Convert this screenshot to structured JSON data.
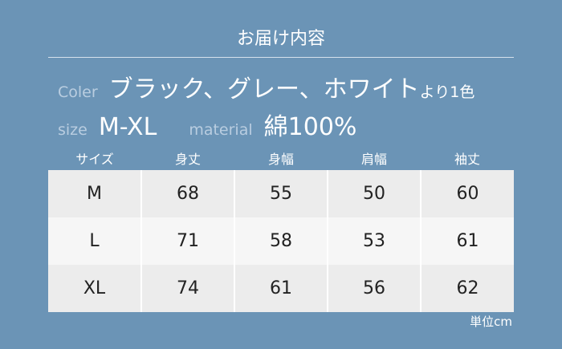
{
  "title": "お届け内容",
  "color": {
    "label": "Coler",
    "value": "ブラック、グレー、ホワイト",
    "suffix": "より1色"
  },
  "size": {
    "label": "size",
    "value": "M-XL"
  },
  "material": {
    "label": "material",
    "value": "綿100%"
  },
  "table": {
    "headers": [
      "サイズ",
      "身丈",
      "身幅",
      "肩幅",
      "袖丈"
    ],
    "rows": [
      [
        "M",
        "68",
        "55",
        "50",
        "60"
      ],
      [
        "L",
        "71",
        "58",
        "53",
        "61"
      ],
      [
        "XL",
        "74",
        "61",
        "56",
        "62"
      ]
    ]
  },
  "unit": "単位cm"
}
